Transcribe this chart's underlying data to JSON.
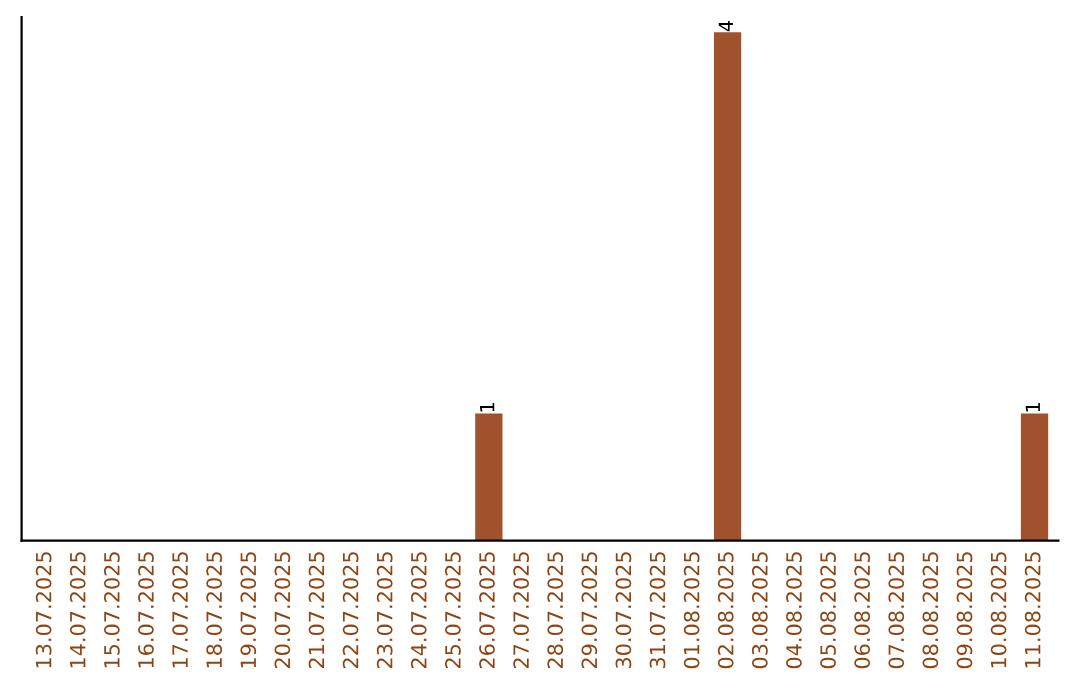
{
  "chart_data": {
    "type": "bar",
    "categories": [
      "13.07.2025",
      "14.07.2025",
      "15.07.2025",
      "16.07.2025",
      "17.07.2025",
      "18.07.2025",
      "19.07.2025",
      "20.07.2025",
      "21.07.2025",
      "22.07.2025",
      "23.07.2025",
      "24.07.2025",
      "25.07.2025",
      "26.07.2025",
      "27.07.2025",
      "28.07.2025",
      "29.07.2025",
      "30.07.2025",
      "31.07.2025",
      "01.08.2025",
      "02.08.2025",
      "03.08.2025",
      "04.08.2025",
      "05.08.2025",
      "06.08.2025",
      "07.08.2025",
      "08.08.2025",
      "09.08.2025",
      "10.08.2025",
      "11.08.2025"
    ],
    "values": [
      null,
      null,
      null,
      null,
      null,
      null,
      null,
      null,
      null,
      null,
      null,
      null,
      null,
      1,
      null,
      null,
      null,
      null,
      null,
      null,
      4,
      null,
      null,
      null,
      null,
      null,
      null,
      null,
      null,
      1
    ],
    "data_labels": true,
    "color": "#a0522d",
    "tick_labels": "x",
    "grid": false,
    "legend": false
  }
}
